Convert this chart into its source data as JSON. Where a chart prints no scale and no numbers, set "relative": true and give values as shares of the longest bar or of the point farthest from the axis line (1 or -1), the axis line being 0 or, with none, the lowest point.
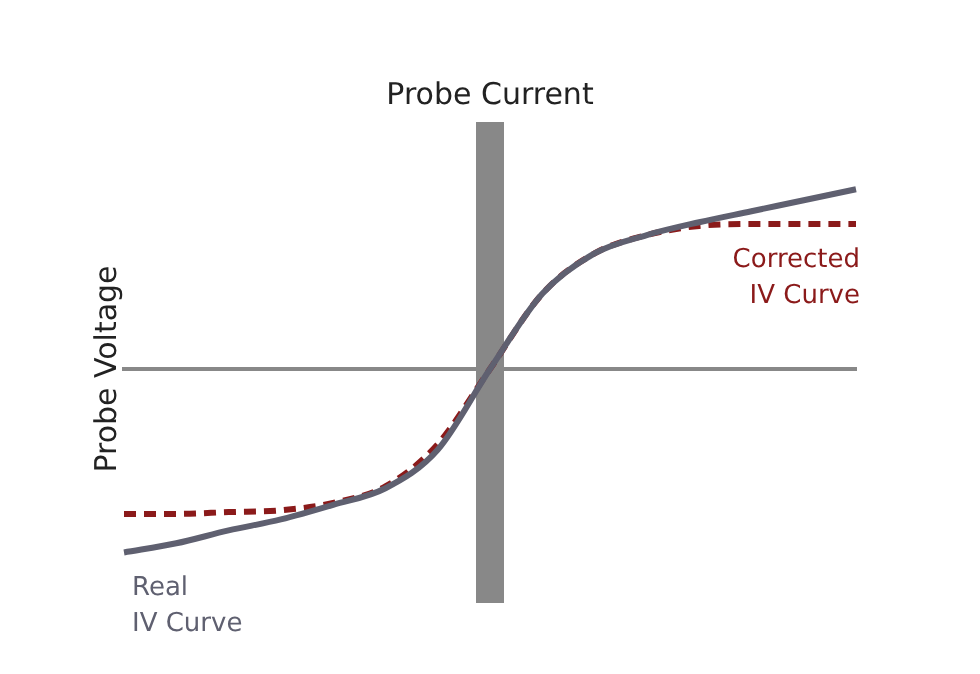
{
  "chart_data": {
    "type": "line",
    "relative": true,
    "xlabel": "Probe Current",
    "ylabel": "Probe Voltage",
    "categories": [
      null,
      null,
      null,
      null,
      null,
      null,
      null,
      null,
      null,
      null,
      null,
      null,
      null,
      null,
      null
    ],
    "series": [
      {
        "name": "Real IV Curve",
        "color": "#5f6070",
        "line_style": "solid",
        "values": [
          -1,
          -0.95,
          -0.88,
          -0.82,
          -0.74,
          -0.65,
          -0.44,
          0,
          0.41,
          0.63,
          0.73,
          0.8,
          0.86,
          0.92,
          0.98
        ]
      },
      {
        "name": "Corrected IV Curve",
        "color": "#8b1a1a",
        "line_style": "dashed",
        "values": [
          -0.79,
          -0.79,
          -0.78,
          -0.77,
          -0.73,
          -0.64,
          -0.41,
          0,
          0.41,
          0.63,
          0.73,
          0.78,
          0.79,
          0.79,
          0.79
        ]
      }
    ],
    "marker": "none",
    "grid": false,
    "legend": false
  }
}
